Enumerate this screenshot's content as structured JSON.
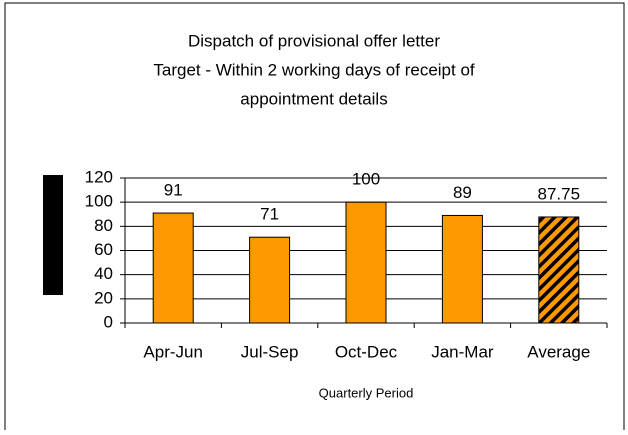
{
  "chart_data": {
    "type": "bar",
    "title": [
      "Dispatch of provisional offer letter",
      "Target - Within 2 working days of receipt of",
      "appointment details"
    ],
    "x_label": "Quarterly Period",
    "categories": [
      "Apr-Jun",
      "Jul-Sep",
      "Oct-Dec",
      "Jan-Mar",
      "Average"
    ],
    "values": [
      91,
      71,
      100,
      89,
      87.75
    ],
    "patterns": [
      "solid",
      "solid",
      "solid",
      "solid",
      "hatched"
    ],
    "color": "#ff9900",
    "ylim": [
      0,
      120
    ],
    "yticks": [
      0,
      20,
      40,
      60,
      80,
      100,
      120
    ],
    "grid": true
  }
}
